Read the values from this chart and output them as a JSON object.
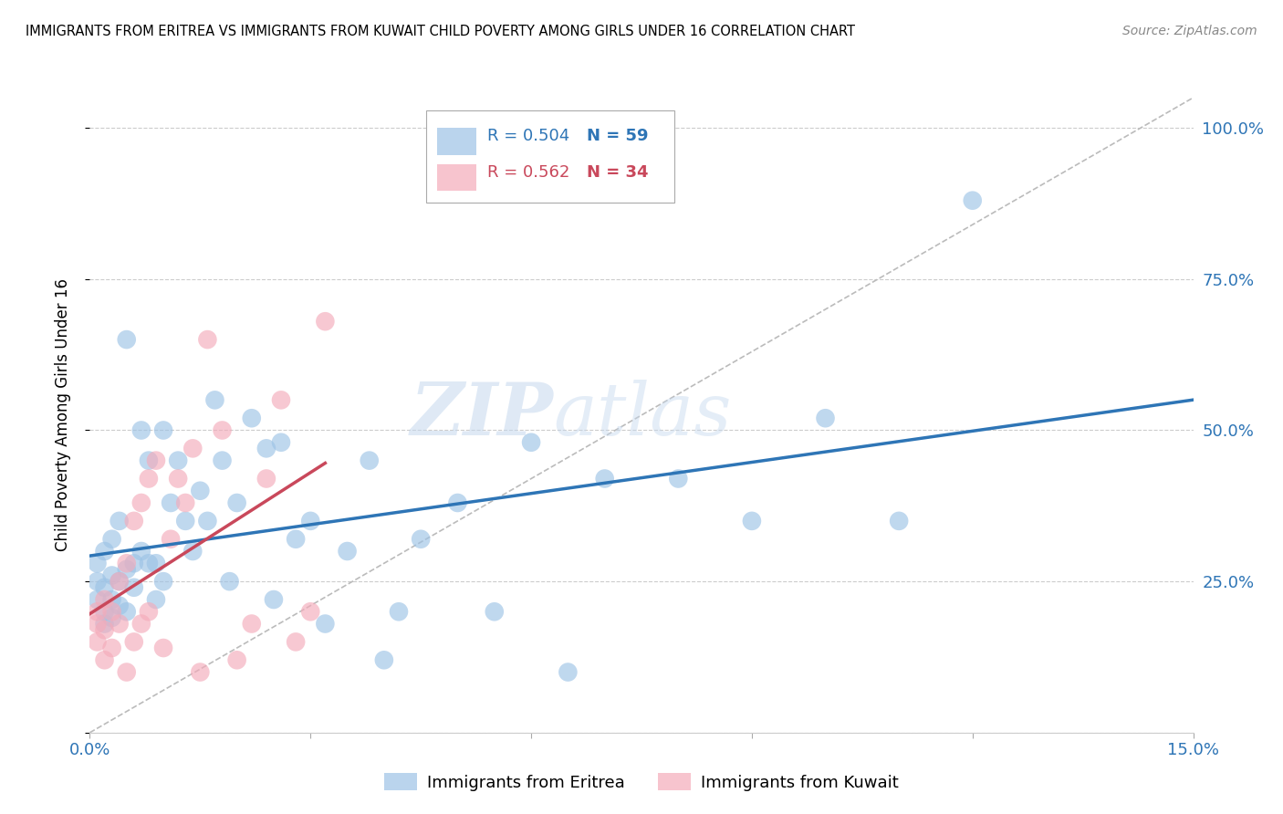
{
  "title": "IMMIGRANTS FROM ERITREA VS IMMIGRANTS FROM KUWAIT CHILD POVERTY AMONG GIRLS UNDER 16 CORRELATION CHART",
  "source": "Source: ZipAtlas.com",
  "ylabel": "Child Poverty Among Girls Under 16",
  "xlim": [
    0.0,
    0.15
  ],
  "ylim": [
    0.0,
    1.05
  ],
  "xticks": [
    0.0,
    0.03,
    0.06,
    0.09,
    0.12,
    0.15
  ],
  "xticklabels": [
    "0.0%",
    "",
    "",
    "",
    "",
    "15.0%"
  ],
  "yticks": [
    0.0,
    0.25,
    0.5,
    0.75,
    1.0
  ],
  "yticklabels": [
    "",
    "25.0%",
    "50.0%",
    "75.0%",
    "100.0%"
  ],
  "watermark_zip": "ZIP",
  "watermark_atlas": "atlas",
  "legend_eritrea_R": "R = 0.504",
  "legend_eritrea_N": "N = 59",
  "legend_kuwait_R": "R = 0.562",
  "legend_kuwait_N": "N = 34",
  "color_eritrea": "#9DC3E6",
  "color_kuwait": "#F4ABBA",
  "color_eritrea_line": "#2E75B6",
  "color_kuwait_line": "#C9485B",
  "color_diagonal": "#BBBBBB",
  "color_axis_labels": "#2E75B6",
  "color_r_eritrea": "#2E75B6",
  "color_r_kuwait": "#C9485B",
  "color_n_eritrea": "#2E75B6",
  "color_n_kuwait": "#C9485B",
  "eritrea_x": [
    0.001,
    0.001,
    0.001,
    0.002,
    0.002,
    0.002,
    0.002,
    0.003,
    0.003,
    0.003,
    0.003,
    0.004,
    0.004,
    0.004,
    0.005,
    0.005,
    0.005,
    0.006,
    0.006,
    0.007,
    0.007,
    0.008,
    0.008,
    0.009,
    0.009,
    0.01,
    0.01,
    0.011,
    0.012,
    0.013,
    0.014,
    0.015,
    0.016,
    0.017,
    0.018,
    0.019,
    0.02,
    0.022,
    0.024,
    0.025,
    0.026,
    0.028,
    0.03,
    0.032,
    0.035,
    0.038,
    0.04,
    0.042,
    0.045,
    0.05,
    0.055,
    0.06,
    0.065,
    0.07,
    0.08,
    0.09,
    0.1,
    0.11,
    0.12
  ],
  "eritrea_y": [
    0.22,
    0.25,
    0.28,
    0.18,
    0.2,
    0.24,
    0.3,
    0.19,
    0.22,
    0.26,
    0.32,
    0.21,
    0.25,
    0.35,
    0.2,
    0.27,
    0.65,
    0.24,
    0.28,
    0.3,
    0.5,
    0.28,
    0.45,
    0.22,
    0.28,
    0.25,
    0.5,
    0.38,
    0.45,
    0.35,
    0.3,
    0.4,
    0.35,
    0.55,
    0.45,
    0.25,
    0.38,
    0.52,
    0.47,
    0.22,
    0.48,
    0.32,
    0.35,
    0.18,
    0.3,
    0.45,
    0.12,
    0.2,
    0.32,
    0.38,
    0.2,
    0.48,
    0.1,
    0.42,
    0.42,
    0.35,
    0.52,
    0.35,
    0.88
  ],
  "kuwait_x": [
    0.001,
    0.001,
    0.001,
    0.002,
    0.002,
    0.002,
    0.003,
    0.003,
    0.004,
    0.004,
    0.005,
    0.005,
    0.006,
    0.006,
    0.007,
    0.007,
    0.008,
    0.008,
    0.009,
    0.01,
    0.011,
    0.012,
    0.013,
    0.014,
    0.015,
    0.016,
    0.018,
    0.02,
    0.022,
    0.024,
    0.026,
    0.028,
    0.03,
    0.032
  ],
  "kuwait_y": [
    0.15,
    0.2,
    0.18,
    0.12,
    0.17,
    0.22,
    0.14,
    0.2,
    0.18,
    0.25,
    0.1,
    0.28,
    0.15,
    0.35,
    0.18,
    0.38,
    0.2,
    0.42,
    0.45,
    0.14,
    0.32,
    0.42,
    0.38,
    0.47,
    0.1,
    0.65,
    0.5,
    0.12,
    0.18,
    0.42,
    0.55,
    0.15,
    0.2,
    0.68
  ]
}
